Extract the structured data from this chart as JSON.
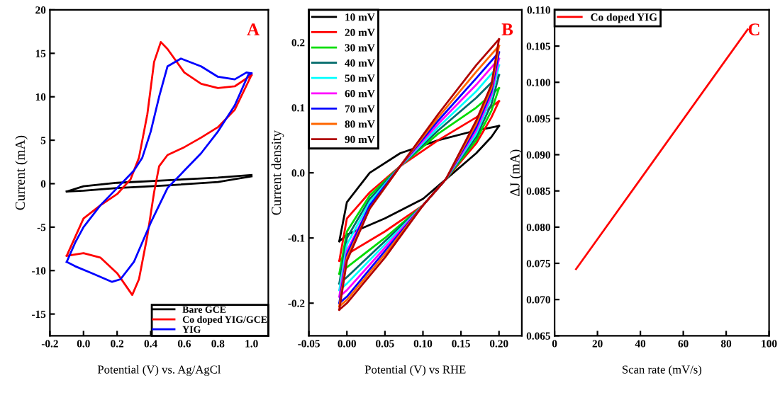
{
  "chart_data": [
    {
      "type": "line",
      "xlabel": "Potential (V) vs. Ag/AgCl",
      "ylabel": "Current (mA)",
      "annotations": [
        "A"
      ],
      "legend": "bottom right",
      "grid": false,
      "xlim": [
        -0.2,
        1.1
      ],
      "xticks": [
        -0.2,
        {
          "value": 0,
          "label": "0.0"
        },
        0.2,
        0.4,
        0.6,
        0.8,
        {
          "value": 1,
          "label": "1.0"
        }
      ],
      "ylim": [
        -17.5,
        20
      ],
      "yticks": [
        -15,
        -10,
        -5,
        0,
        5,
        10,
        15,
        20
      ],
      "series": [
        {
          "name": "Bare GCE",
          "color": "#000000",
          "x": [
            -0.1,
            0.0,
            0.2,
            0.5,
            0.8,
            1.0
          ],
          "values": [
            -0.9,
            -0.3,
            0.1,
            0.4,
            0.7,
            1.0
          ]
        },
        {
          "color": "#000000",
          "x": [
            -0.1,
            0.0,
            0.2,
            0.5,
            0.8,
            1.0
          ],
          "values": [
            -0.9,
            -0.8,
            -0.5,
            -0.2,
            0.2,
            0.85
          ]
        },
        {
          "name": "Co doped YIG/GCE",
          "color": "#ff0000",
          "x": [
            -0.1,
            0.0,
            0.1,
            0.2,
            0.29,
            0.33,
            0.38,
            0.42,
            0.45,
            0.5,
            0.6,
            0.7,
            0.8,
            0.9,
            1.0
          ],
          "values": [
            -8.3,
            -8.0,
            -8.5,
            -10.3,
            -12.8,
            -11,
            -6,
            -1,
            2,
            3.3,
            4.2,
            5.3,
            6.5,
            8.5,
            12.5
          ]
        },
        {
          "color": "#ff0000",
          "x": [
            -0.1,
            0.0,
            0.1,
            0.2,
            0.28,
            0.33,
            0.38,
            0.42,
            0.46,
            0.5,
            0.6,
            0.7,
            0.8,
            0.9,
            1.0
          ],
          "values": [
            -8.3,
            -4,
            -2.5,
            -1.2,
            0.5,
            3,
            8,
            14,
            16.3,
            15.5,
            12.8,
            11.5,
            11,
            11.2,
            12.5
          ]
        },
        {
          "name": "YIG",
          "color": "#0000ff",
          "x": [
            -0.1,
            -0.05,
            0.05,
            0.17,
            0.22,
            0.3,
            0.4,
            0.5,
            0.6,
            0.7,
            0.8,
            0.9,
            0.98,
            1.0
          ],
          "values": [
            -9,
            -9.5,
            -10.3,
            -11.3,
            -11,
            -9,
            -4.5,
            -0.5,
            1.5,
            3.5,
            6,
            9,
            12.5,
            12.7
          ]
        },
        {
          "color": "#0000ff",
          "x": [
            -0.1,
            -0.05,
            0.0,
            0.1,
            0.2,
            0.3,
            0.35,
            0.4,
            0.45,
            0.5,
            0.58,
            0.7,
            0.8,
            0.9,
            0.97,
            1.0
          ],
          "values": [
            -9,
            -6.8,
            -5,
            -2.5,
            -0.5,
            1.5,
            3,
            6,
            10,
            13.5,
            14.4,
            13.5,
            12.3,
            12,
            12.8,
            12.7
          ]
        }
      ]
    },
    {
      "type": "line",
      "xlabel": "Potential (V) vs RHE",
      "ylabel": "Current density",
      "annotations": [
        "B"
      ],
      "legend": "top left",
      "grid": false,
      "xlim": [
        -0.05,
        0.23
      ],
      "xticks": [
        -0.05,
        {
          "value": 0,
          "label": "0.00"
        },
        0.05,
        {
          "value": 0.1,
          "label": "0.10"
        },
        0.15,
        {
          "value": 0.2,
          "label": "0.20"
        }
      ],
      "ylim": [
        -0.25,
        0.25
      ],
      "yticks": [
        -0.2,
        -0.1,
        {
          "value": 0,
          "label": "0.0"
        },
        0.1,
        0.2
      ],
      "series": [
        {
          "name": "10 mV",
          "color": "#000000",
          "x": [
            -0.01,
            0,
            0.03,
            0.07,
            0.12,
            0.17,
            0.2
          ],
          "values": [
            -0.105,
            -0.045,
            0.0,
            0.03,
            0.05,
            0.065,
            0.072
          ]
        },
        {
          "color": "#000000",
          "x": [
            -0.01,
            0,
            0.05,
            0.1,
            0.13,
            0.17,
            0.19,
            0.2
          ],
          "values": [
            -0.105,
            -0.095,
            -0.07,
            -0.04,
            -0.01,
            0.03,
            0.055,
            0.072
          ]
        },
        {
          "name": "20 mV",
          "color": "#ff0000",
          "x": [
            -0.01,
            0,
            0.03,
            0.07,
            0.12,
            0.17,
            0.2
          ],
          "values": [
            -0.135,
            -0.07,
            -0.03,
            0.01,
            0.05,
            0.085,
            0.11
          ]
        },
        {
          "color": "#ff0000",
          "x": [
            -0.01,
            0,
            0.05,
            0.1,
            0.13,
            0.17,
            0.19,
            0.2
          ],
          "values": [
            -0.135,
            -0.125,
            -0.09,
            -0.05,
            -0.01,
            0.045,
            0.085,
            0.11
          ]
        },
        {
          "name": "30 mV",
          "color": "#00dd00",
          "x": [
            -0.01,
            0,
            0.03,
            0.07,
            0.12,
            0.17,
            0.2
          ],
          "values": [
            -0.155,
            -0.09,
            -0.035,
            0.01,
            0.06,
            0.1,
            0.13
          ]
        },
        {
          "color": "#00dd00",
          "x": [
            -0.01,
            0,
            0.05,
            0.1,
            0.13,
            0.17,
            0.19,
            0.2
          ],
          "values": [
            -0.155,
            -0.145,
            -0.1,
            -0.05,
            -0.01,
            0.05,
            0.095,
            0.13
          ]
        },
        {
          "name": "40 mV",
          "color": "#006a6a",
          "x": [
            -0.01,
            0,
            0.03,
            0.07,
            0.12,
            0.17,
            0.2
          ],
          "values": [
            -0.17,
            -0.1,
            -0.04,
            0.01,
            0.065,
            0.115,
            0.15
          ]
        },
        {
          "color": "#006a6a",
          "x": [
            -0.01,
            0,
            0.05,
            0.1,
            0.13,
            0.17,
            0.19,
            0.2
          ],
          "values": [
            -0.17,
            -0.16,
            -0.105,
            -0.05,
            -0.01,
            0.055,
            0.105,
            0.15
          ]
        },
        {
          "name": "50 mV",
          "color": "#00ffff",
          "x": [
            -0.01,
            0,
            0.03,
            0.07,
            0.12,
            0.17,
            0.2
          ],
          "values": [
            -0.18,
            -0.11,
            -0.045,
            0.01,
            0.07,
            0.125,
            0.165
          ]
        },
        {
          "color": "#00ffff",
          "x": [
            -0.01,
            0,
            0.05,
            0.1,
            0.13,
            0.17,
            0.19,
            0.2
          ],
          "values": [
            -0.18,
            -0.17,
            -0.11,
            -0.05,
            -0.01,
            0.06,
            0.115,
            0.165
          ]
        },
        {
          "name": "60 mV",
          "color": "#ff00ff",
          "x": [
            -0.01,
            0,
            0.03,
            0.07,
            0.12,
            0.17,
            0.2
          ],
          "values": [
            -0.19,
            -0.12,
            -0.05,
            0.01,
            0.075,
            0.135,
            0.175
          ]
        },
        {
          "color": "#ff00ff",
          "x": [
            -0.01,
            0,
            0.05,
            0.1,
            0.13,
            0.17,
            0.19,
            0.2
          ],
          "values": [
            -0.19,
            -0.18,
            -0.115,
            -0.05,
            -0.01,
            0.065,
            0.12,
            0.175
          ]
        },
        {
          "name": "70 mV",
          "color": "#0000ff",
          "x": [
            -0.01,
            0,
            0.03,
            0.07,
            0.12,
            0.17,
            0.2
          ],
          "values": [
            -0.2,
            -0.125,
            -0.05,
            0.01,
            0.08,
            0.145,
            0.185
          ]
        },
        {
          "color": "#0000ff",
          "x": [
            -0.01,
            0,
            0.05,
            0.1,
            0.13,
            0.17,
            0.19,
            0.2
          ],
          "values": [
            -0.2,
            -0.19,
            -0.12,
            -0.05,
            -0.01,
            0.07,
            0.125,
            0.185
          ]
        },
        {
          "name": "80 mV",
          "color": "#ff6600",
          "x": [
            -0.01,
            0,
            0.03,
            0.07,
            0.12,
            0.17,
            0.2
          ],
          "values": [
            -0.205,
            -0.13,
            -0.055,
            0.01,
            0.085,
            0.155,
            0.195
          ]
        },
        {
          "color": "#ff6600",
          "x": [
            -0.01,
            0,
            0.05,
            0.1,
            0.13,
            0.17,
            0.19,
            0.2
          ],
          "values": [
            -0.205,
            -0.195,
            -0.125,
            -0.05,
            -0.01,
            0.075,
            0.13,
            0.195
          ]
        },
        {
          "name": "90 mV",
          "color": "#b00000",
          "x": [
            -0.01,
            0,
            0.03,
            0.07,
            0.12,
            0.17,
            0.2
          ],
          "values": [
            -0.21,
            -0.135,
            -0.055,
            0.01,
            0.09,
            0.165,
            0.205
          ]
        },
        {
          "color": "#b00000",
          "x": [
            -0.01,
            0,
            0.05,
            0.1,
            0.13,
            0.17,
            0.19,
            0.2
          ],
          "values": [
            -0.21,
            -0.2,
            -0.13,
            -0.05,
            -0.01,
            0.08,
            0.135,
            0.205
          ]
        }
      ]
    },
    {
      "type": "line",
      "xlabel": "Scan rate (mV/s)",
      "ylabel": "ΔJ (mA)",
      "annotations": [
        "C"
      ],
      "legend": "top left",
      "grid": false,
      "xlim": [
        0,
        100
      ],
      "xticks": [
        0,
        20,
        40,
        60,
        80,
        100
      ],
      "ylim": [
        0.065,
        0.11
      ],
      "yticks": [
        0.065,
        {
          "value": 0.07,
          "label": "0.070"
        },
        0.075,
        {
          "value": 0.08,
          "label": "0.080"
        },
        0.085,
        {
          "value": 0.09,
          "label": "0.090"
        },
        0.095,
        {
          "value": 0.1,
          "label": "0.100"
        },
        0.105,
        {
          "value": 0.11,
          "label": "0.110"
        }
      ],
      "series": [
        {
          "name": "Co doped YIG",
          "color": "#ff0000",
          "x": [
            10,
            90
          ],
          "values": [
            0.0742,
            0.1073
          ]
        }
      ]
    }
  ]
}
